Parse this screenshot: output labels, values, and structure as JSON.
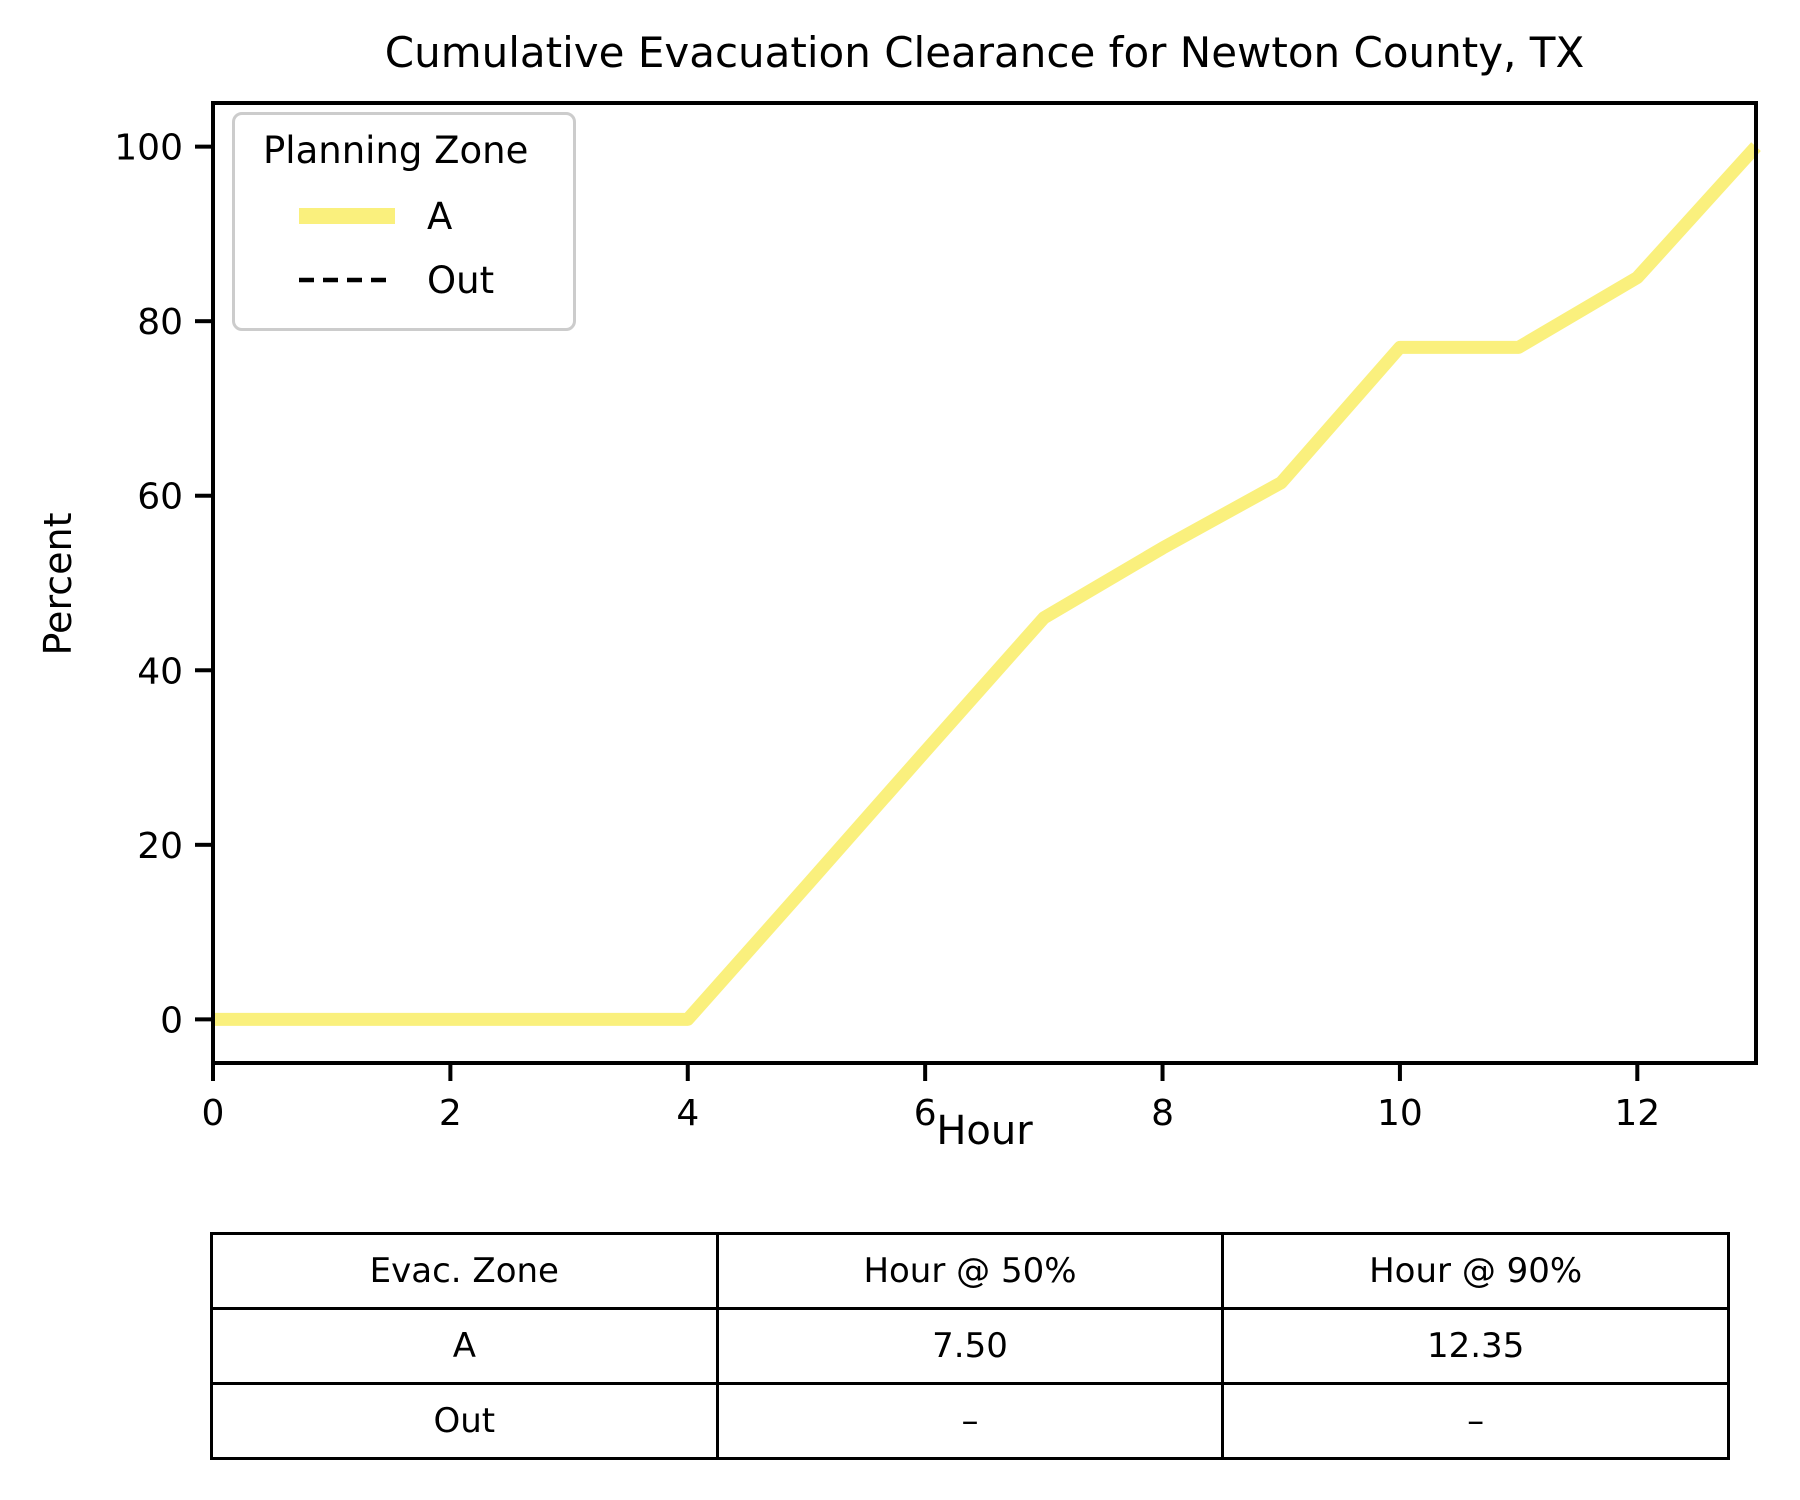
{
  "chart_data": {
    "type": "line",
    "title": "Cumulative Evacuation Clearance for Newton County, TX",
    "xlabel": "Hour",
    "ylabel": "Percent",
    "xlim": [
      0,
      13
    ],
    "ylim": [
      -5,
      105
    ],
    "xticks": [
      0,
      2,
      4,
      6,
      8,
      10,
      12
    ],
    "yticks": [
      0,
      20,
      40,
      60,
      80,
      100
    ],
    "grid": false,
    "legend": {
      "title": "Planning Zone",
      "position": "upper left"
    },
    "series": [
      {
        "name": "A",
        "color": "#FAF07D",
        "style": "solid",
        "x": [
          0,
          1,
          2,
          3,
          4,
          5,
          6,
          7,
          8,
          9,
          10,
          11,
          12,
          13
        ],
        "y": [
          0,
          0,
          0,
          0,
          0,
          15.3,
          30.7,
          46,
          54,
          61.5,
          77,
          77,
          85,
          100
        ]
      },
      {
        "name": "Out",
        "color": "#000000",
        "style": "dashed",
        "x": [],
        "y": []
      }
    ]
  },
  "table": {
    "headers": [
      "Evac. Zone",
      "Hour @ 50%",
      "Hour @ 90%"
    ],
    "rows": [
      [
        "A",
        "7.50",
        "12.35"
      ],
      [
        "Out",
        "–",
        "–"
      ]
    ]
  },
  "colors": {
    "line_a": "#FAF07D",
    "line_out": "#000000",
    "spine": "#000000",
    "legend_border": "#cccccc"
  }
}
